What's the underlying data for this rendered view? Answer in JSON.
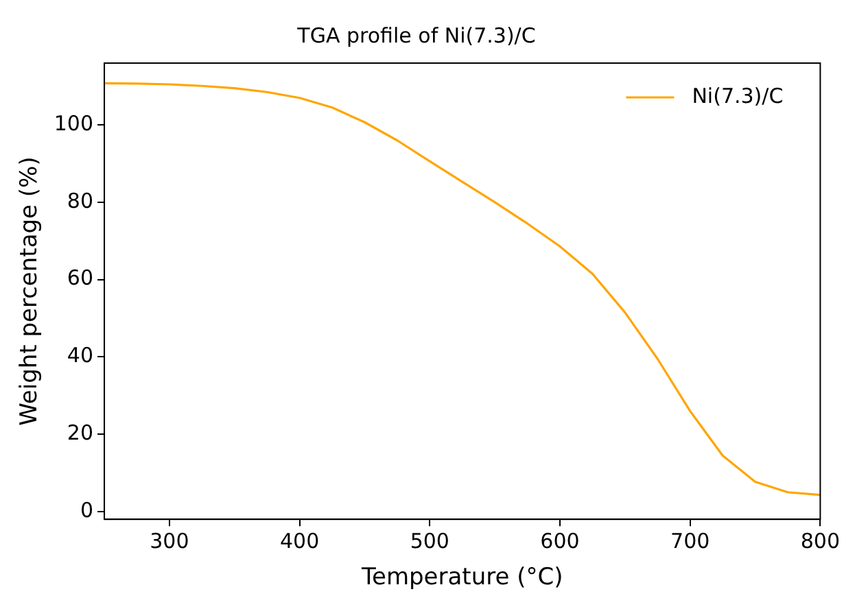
{
  "chart_data": {
    "type": "line",
    "title": "TGA profile of Ni(7.3)/C",
    "xlabel": "Temperature (°C)",
    "ylabel": "Weight percentage (%)",
    "x": [
      250,
      275,
      300,
      325,
      350,
      375,
      400,
      425,
      450,
      475,
      500,
      525,
      550,
      575,
      600,
      625,
      650,
      675,
      700,
      725,
      750,
      775,
      800
    ],
    "series": [
      {
        "name": "Ni(7.3)/C",
        "color": "#ffa500",
        "values": [
          110.8,
          110.7,
          110.5,
          110.1,
          109.5,
          108.5,
          107,
          104.5,
          100.7,
          96,
          90.6,
          85.3,
          80,
          74.5,
          68.6,
          61.5,
          51.5,
          39.5,
          26,
          14.5,
          7.7,
          5,
          4.3
        ]
      }
    ],
    "xlim": [
      250,
      800
    ],
    "ylim": [
      -2,
      116
    ],
    "xticks": [
      300,
      400,
      500,
      600,
      700,
      800
    ],
    "yticks": [
      0,
      20,
      40,
      60,
      80,
      100
    ],
    "grid": false,
    "legend": "top right",
    "marker": "none",
    "line_style": "solid"
  }
}
